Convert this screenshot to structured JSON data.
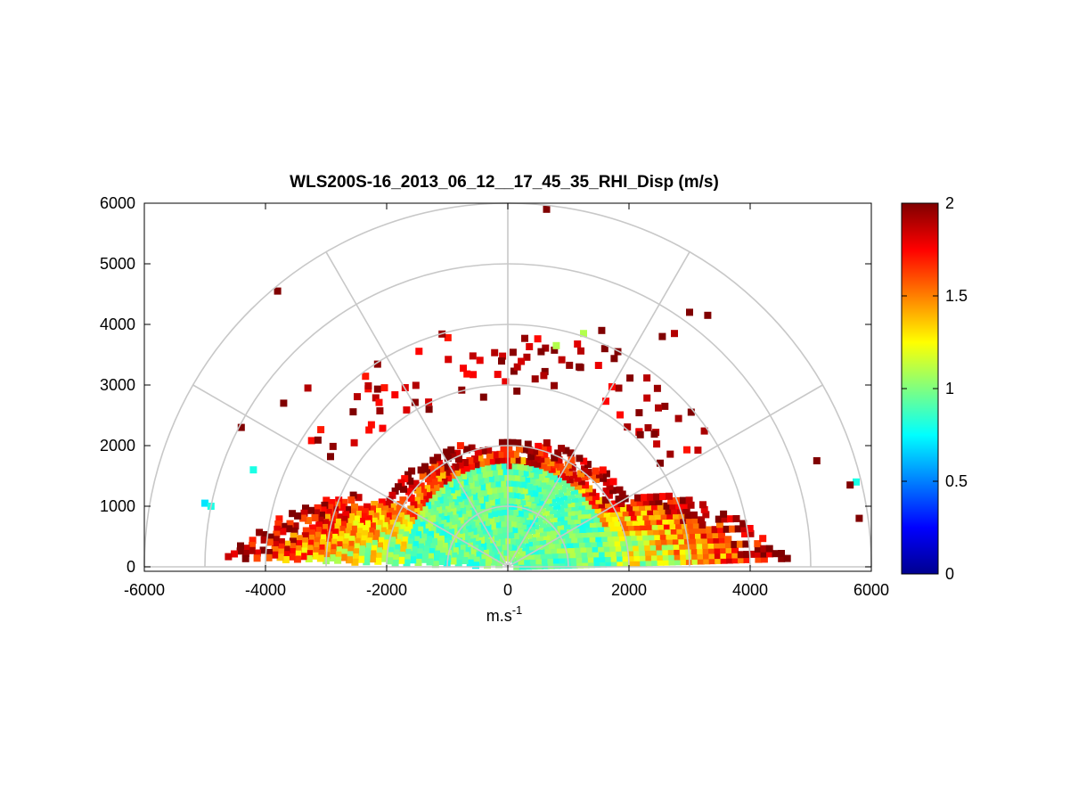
{
  "chart_data": {
    "type": "heatmap",
    "title": "WLS200S-16_2013_06_12__17_45_35_RHI_Disp (m/s)",
    "xlabel": "m.s",
    "xlabel_superscript": "-1",
    "ylabel": "",
    "xlim": [
      -6000,
      6000
    ],
    "ylim": [
      0,
      6000
    ],
    "x_ticks": [
      "-6000",
      "-4000",
      "-2000",
      "0",
      "2000",
      "4000",
      "6000"
    ],
    "y_ticks": [
      "0",
      "1000",
      "2000",
      "3000",
      "4000",
      "5000",
      "6000"
    ],
    "x_tick_values": [
      -6000,
      -4000,
      -2000,
      0,
      2000,
      4000,
      6000
    ],
    "y_tick_values": [
      0,
      1000,
      2000,
      3000,
      4000,
      5000,
      6000
    ],
    "polar_grid": {
      "ranges": [
        1000,
        2000,
        3000,
        4000,
        5000,
        6000
      ],
      "angles_deg": [
        0,
        30,
        60,
        90,
        120,
        150,
        180
      ]
    },
    "colorbar": {
      "colormap": "jet",
      "min": 0,
      "max": 2,
      "ticks": [
        "0",
        "0.5",
        "1",
        "1.5",
        "2"
      ],
      "tick_values": [
        0,
        0.5,
        1,
        1.5,
        2
      ]
    },
    "approximate_field": {
      "description_values": "dispersion in m/s by region",
      "core_range_m": 2000,
      "core_value": 0.95,
      "near_horizon_max_range_m": 4800,
      "edge_value": 2.0,
      "sparse_upper_range_m": [
        3000,
        6000
      ]
    },
    "isolated_cells": [
      {
        "x": 640,
        "y": 5900,
        "v": 2.0
      },
      {
        "x": -3800,
        "y": 4550,
        "v": 2.0
      },
      {
        "x": -3300,
        "y": 2950,
        "v": 1.9
      },
      {
        "x": -3700,
        "y": 2700,
        "v": 2.0
      },
      {
        "x": -4400,
        "y": 2300,
        "v": 2.0
      },
      {
        "x": -4200,
        "y": 1600,
        "v": 0.8
      },
      {
        "x": -5000,
        "y": 1050,
        "v": 0.7
      },
      {
        "x": -4900,
        "y": 1000,
        "v": 0.8
      },
      {
        "x": 3000,
        "y": 4200,
        "v": 2.0
      },
      {
        "x": 3300,
        "y": 4150,
        "v": 2.0
      },
      {
        "x": 2750,
        "y": 3850,
        "v": 1.9
      },
      {
        "x": 2550,
        "y": 3800,
        "v": 2.0
      },
      {
        "x": 1250,
        "y": 3850,
        "v": 1.1
      },
      {
        "x": 1600,
        "y": 3600,
        "v": 2.0
      },
      {
        "x": 1550,
        "y": 3900,
        "v": 2.0
      },
      {
        "x": 800,
        "y": 3650,
        "v": 1.1
      },
      {
        "x": 550,
        "y": 3550,
        "v": 2.0
      },
      {
        "x": 5100,
        "y": 1750,
        "v": 2.0
      },
      {
        "x": 5750,
        "y": 1400,
        "v": 0.8
      },
      {
        "x": 5650,
        "y": 1350,
        "v": 2.0
      },
      {
        "x": 5800,
        "y": 800,
        "v": 2.0
      },
      {
        "x": -1300,
        "y": 2600,
        "v": 2.0
      },
      {
        "x": 150,
        "y": 2900,
        "v": 2.0
      },
      {
        "x": -400,
        "y": 2800,
        "v": 2.0
      }
    ]
  }
}
